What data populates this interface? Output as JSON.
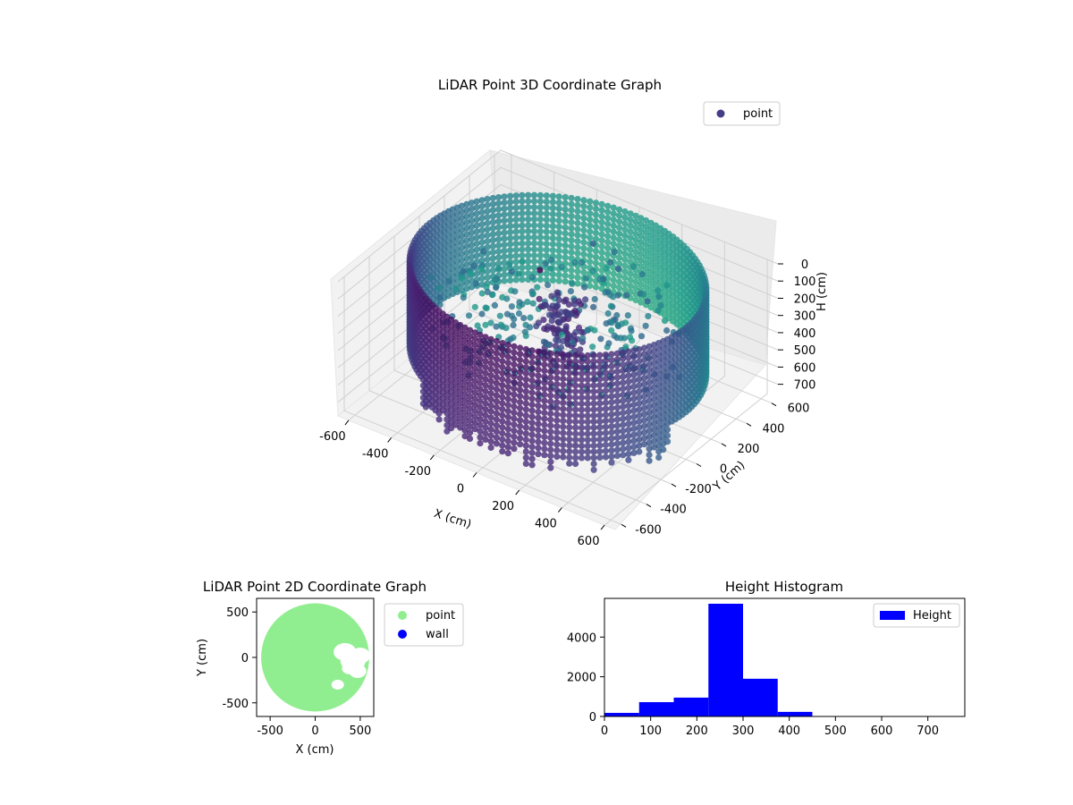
{
  "chart_data": [
    {
      "type": "scatter3d",
      "title": "LiDAR Point 3D Coordinate Graph",
      "xlabel": "X (cm)",
      "ylabel": "Y (cm)",
      "zlabel": "H (cm)",
      "xlim": [
        -650,
        650
      ],
      "ylim": [
        -650,
        650
      ],
      "zlim": [
        780,
        0
      ],
      "xticks": [
        -600,
        -400,
        -200,
        0,
        200,
        400,
        600
      ],
      "yticks": [
        -600,
        -400,
        -200,
        0,
        200,
        400,
        600
      ],
      "zticks": [
        0,
        100,
        200,
        300,
        400,
        500,
        600,
        700
      ],
      "legend": [
        {
          "label": "point",
          "color": "#433e85"
        }
      ],
      "legend_position": "top-right",
      "grid": true,
      "colormap": "viridis",
      "series": [
        {
          "name": "point",
          "description_shape": "ring wall of radius ~600 cm, heights 0-750 cm, plus central cluster"
        }
      ]
    },
    {
      "type": "scatter",
      "title": "LiDAR Point 2D Coordinate Graph",
      "xlabel": "X (cm)",
      "ylabel": "Y (cm)",
      "xlim": [
        -650,
        650
      ],
      "ylim": [
        -650,
        650
      ],
      "xticks": [
        -500,
        0,
        500
      ],
      "yticks": [
        -500,
        0,
        500
      ],
      "legend": [
        {
          "label": "point",
          "color": "#90ee90"
        },
        {
          "label": "wall",
          "color": "#0000ff"
        }
      ],
      "legend_position": "outside-right"
    },
    {
      "type": "bar",
      "title": "Height Histogram",
      "xlabel": "",
      "ylabel": "",
      "xlim": [
        0,
        780
      ],
      "ylim": [
        0,
        5950
      ],
      "xticks": [
        0,
        100,
        200,
        300,
        400,
        500,
        600,
        700
      ],
      "yticks": [
        0,
        2000,
        4000
      ],
      "bin_edges": [
        0,
        75,
        150,
        225,
        300,
        375,
        450,
        525,
        600,
        675,
        750
      ],
      "values": [
        180,
        720,
        950,
        5680,
        1900,
        230,
        0,
        0,
        0,
        0
      ],
      "color": "#0000ff",
      "legend": [
        {
          "label": "Height",
          "color": "#0000ff"
        }
      ],
      "legend_position": "top-right"
    }
  ]
}
